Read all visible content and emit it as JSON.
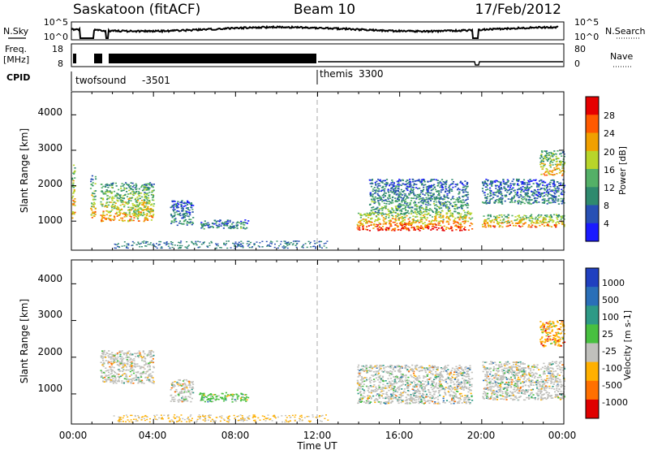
{
  "header": {
    "station": "Saskatoon (fitACF)",
    "beam": "Beam 10",
    "date": "17/Feb/2012"
  },
  "strips": {
    "nsky_label": "N.Sky",
    "nsky_ticks": [
      "10^5",
      "10^0"
    ],
    "nsearch_label": "N.Search",
    "nsearch_ticks": [
      "10^5",
      "10^0"
    ],
    "freq_label_1": "Freq.",
    "freq_label_2": "[MHz]",
    "freq_ticks": [
      "18",
      "8"
    ],
    "nave_label": "Nave",
    "nave_ticks": [
      "80",
      "0"
    ],
    "cpid_label": "CPID",
    "cpid_modes": [
      {
        "name": "twofsound",
        "id": "-3501",
        "start_hour": 0,
        "end_hour": 12
      },
      {
        "name": "themis",
        "id": "3300",
        "start_hour": 12,
        "end_hour": 24
      }
    ]
  },
  "axes": {
    "x_ticks": [
      "00:00",
      "04:00",
      "08:00",
      "12:00",
      "16:00",
      "20:00",
      "00:00"
    ],
    "x_title": "Time UT",
    "y_title": "Slant Range [km]",
    "y_ticks": [
      "4000",
      "3000",
      "2000",
      "1000"
    ]
  },
  "chart_data": [
    {
      "type": "heatmap",
      "panel": "power",
      "x_range_hours": [
        0,
        24
      ],
      "y_range_km": [
        180,
        4650
      ],
      "colorbar_title": "Power [dB]",
      "colorbar_ticks": [
        "28",
        "24",
        "20",
        "16",
        "12",
        "8",
        "4"
      ],
      "colorbar_range": [
        0,
        32
      ],
      "colors": [
        "#1a1aff",
        "#2850b4",
        "#2f8a6e",
        "#54b067",
        "#b8d52a",
        "#f0a000",
        "#ff5a00",
        "#e60000"
      ],
      "scatter_regions": [
        {
          "t": [
            0.0,
            0.15
          ],
          "r": [
            1100,
            2600
          ],
          "level": 0.65
        },
        {
          "t": [
            0.9,
            1.15
          ],
          "r": [
            1100,
            2300
          ],
          "level": 0.55
        },
        {
          "t": [
            1.4,
            4.0
          ],
          "r": [
            1000,
            2100
          ],
          "level": 0.6
        },
        {
          "t": [
            4.8,
            5.9
          ],
          "r": [
            900,
            1600
          ],
          "level": 0.3
        },
        {
          "t": [
            6.2,
            8.6
          ],
          "r": [
            800,
            1050
          ],
          "level": 0.3
        },
        {
          "t": [
            13.9,
            19.5
          ],
          "r": [
            750,
            1250
          ],
          "level": 0.8
        },
        {
          "t": [
            14.5,
            19.3
          ],
          "r": [
            1250,
            2200
          ],
          "level": 0.35
        },
        {
          "t": [
            20.0,
            24.0
          ],
          "r": [
            850,
            1200
          ],
          "level": 0.7
        },
        {
          "t": [
            20.0,
            24.0
          ],
          "r": [
            1500,
            2200
          ],
          "level": 0.3
        },
        {
          "t": [
            22.8,
            24.0
          ],
          "r": [
            2300,
            3000
          ],
          "level": 0.6
        }
      ]
    },
    {
      "type": "heatmap",
      "panel": "velocity",
      "x_range_hours": [
        0,
        24
      ],
      "y_range_km": [
        180,
        4650
      ],
      "colorbar_title": "Velocity [m s-1]",
      "colorbar_ticks": [
        "1000",
        "500",
        "100",
        "25",
        "-25",
        "-100",
        "-500",
        "-1000"
      ],
      "colors": [
        "#2040c0",
        "#2a6fb8",
        "#2e9a86",
        "#48c040",
        "#c0c0bc",
        "#ffb000",
        "#ff7000",
        "#e00000"
      ],
      "scatter_regions": [
        {
          "t": [
            1.4,
            4.0
          ],
          "r": [
            1300,
            2200
          ],
          "level": 0.45
        },
        {
          "t": [
            4.8,
            5.9
          ],
          "r": [
            800,
            1400
          ],
          "level": 0.4
        },
        {
          "t": [
            6.2,
            8.6
          ],
          "r": [
            800,
            1050
          ],
          "level": 0.55
        },
        {
          "t": [
            13.9,
            19.5
          ],
          "r": [
            750,
            1800
          ],
          "level": 0.5
        },
        {
          "t": [
            20.0,
            24.0
          ],
          "r": [
            850,
            1900
          ],
          "level": 0.5
        },
        {
          "t": [
            22.8,
            24.0
          ],
          "r": [
            2300,
            3000
          ],
          "level": 0.3
        }
      ]
    }
  ]
}
